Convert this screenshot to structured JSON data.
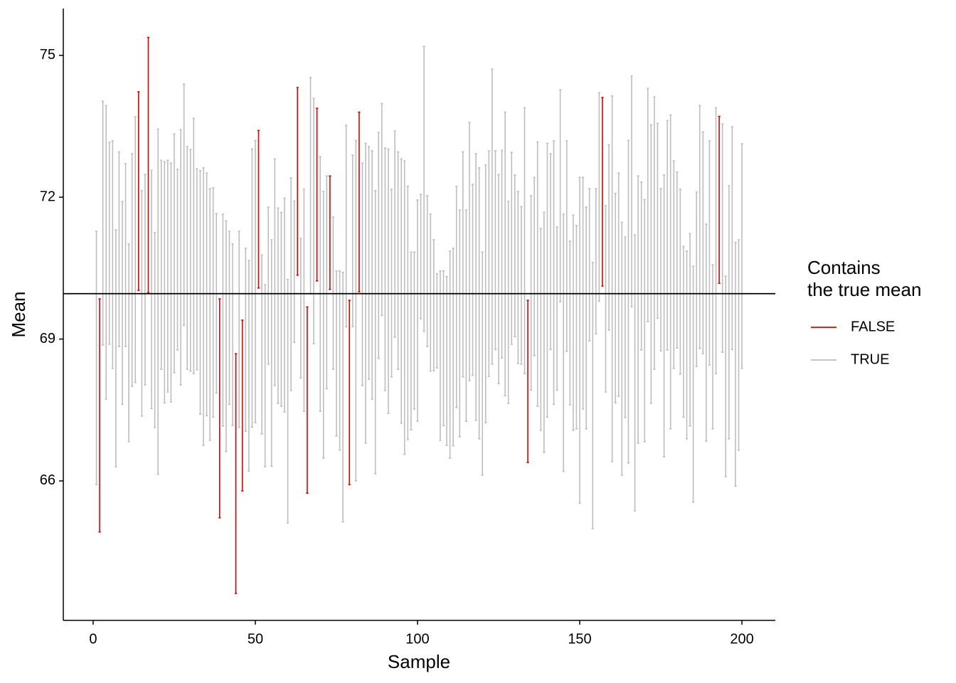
{
  "chart_data": {
    "type": "errorbar",
    "x_label": "Sample",
    "y_label": "Mean",
    "legend_title": "Contains\nthe true mean",
    "xlim": [
      -9.2,
      210.3
    ],
    "ylim": [
      63.05,
      75.99
    ],
    "xticks": [
      0,
      50,
      100,
      150,
      200
    ],
    "yticks": [
      66,
      69,
      72,
      75
    ],
    "hline": 69.96,
    "hline_color": "#000000",
    "legend_position": "right",
    "series": [
      {
        "name": "FALSE",
        "color": "#e00000",
        "x": [
          2,
          14,
          17,
          39,
          44,
          46,
          51,
          63,
          66,
          69,
          73,
          79,
          82,
          134,
          157,
          193
        ],
        "lower": [
          64.92,
          70.03,
          69.98,
          65.22,
          63.62,
          65.79,
          70.08,
          70.35,
          65.74,
          70.23,
          70.05,
          65.92,
          70.0,
          66.39,
          70.12,
          70.18
        ],
        "upper": [
          69.85,
          74.23,
          75.38,
          69.85,
          68.69,
          69.4,
          73.41,
          74.32,
          69.68,
          73.88,
          72.45,
          69.82,
          73.8,
          69.82,
          74.11,
          73.71
        ]
      },
      {
        "name": "TRUE",
        "color": "#bebebe",
        "x": [
          1,
          3,
          4,
          5,
          6,
          7,
          8,
          9,
          10,
          11,
          12,
          13,
          15,
          16,
          18,
          19,
          20,
          21,
          22,
          23,
          24,
          25,
          26,
          27,
          28,
          29,
          30,
          31,
          32,
          33,
          34,
          35,
          36,
          37,
          38,
          40,
          41,
          42,
          43,
          45,
          47,
          48,
          49,
          50,
          52,
          53,
          54,
          55,
          56,
          57,
          58,
          59,
          60,
          61,
          62,
          64,
          65,
          67,
          68,
          70,
          71,
          72,
          74,
          75,
          76,
          77,
          78,
          80,
          81,
          83,
          84,
          85,
          86,
          87,
          88,
          89,
          90,
          91,
          92,
          93,
          94,
          95,
          96,
          97,
          98,
          99,
          100,
          101,
          102,
          103,
          104,
          105,
          106,
          107,
          108,
          109,
          110,
          111,
          112,
          113,
          114,
          115,
          116,
          117,
          118,
          119,
          120,
          121,
          122,
          123,
          124,
          125,
          126,
          127,
          128,
          129,
          130,
          131,
          132,
          133,
          135,
          136,
          137,
          138,
          139,
          140,
          141,
          142,
          143,
          144,
          145,
          146,
          147,
          148,
          149,
          150,
          151,
          152,
          153,
          154,
          155,
          156,
          158,
          159,
          160,
          161,
          162,
          163,
          164,
          165,
          166,
          167,
          168,
          169,
          170,
          171,
          172,
          173,
          174,
          175,
          176,
          177,
          178,
          179,
          180,
          181,
          182,
          183,
          184,
          185,
          186,
          187,
          188,
          189,
          190,
          191,
          192,
          194,
          195,
          196,
          197,
          198,
          199,
          200
        ],
        "lower": [
          65.92,
          68.87,
          67.73,
          68.89,
          68.38,
          66.3,
          68.84,
          67.62,
          68.84,
          66.83,
          68.0,
          68.08,
          67.37,
          68.03,
          67.53,
          67.13,
          66.14,
          68.36,
          67.65,
          67.88,
          67.67,
          68.29,
          68.77,
          68.03,
          69.29,
          68.36,
          68.32,
          68.27,
          68.35,
          67.41,
          66.75,
          67.38,
          66.86,
          67.35,
          67.86,
          67.16,
          66.62,
          67.62,
          67.17,
          67.13,
          67.05,
          66.21,
          67.14,
          67.23,
          66.99,
          66.3,
          68.47,
          66.31,
          68.02,
          67.64,
          67.58,
          67.46,
          65.11,
          67.91,
          68.93,
          68.18,
          67.47,
          69.95,
          68.9,
          67.47,
          66.48,
          67.95,
          68.36,
          66.95,
          66.65,
          65.13,
          69.26,
          69.26,
          66.0,
          68.02,
          66.8,
          68.15,
          67.73,
          66.15,
          68.59,
          69.5,
          67.91,
          67.43,
          68.2,
          69.04,
          68.36,
          67.22,
          66.56,
          66.87,
          67.08,
          67.52,
          67.26,
          69.43,
          69.16,
          68.84,
          68.32,
          68.33,
          68.39,
          66.86,
          67.17,
          66.75,
          66.48,
          66.74,
          67.55,
          66.93,
          68.2,
          67.26,
          68.12,
          68.23,
          67.28,
          66.89,
          66.12,
          67.23,
          68.21,
          68.47,
          68.78,
          68.06,
          68.6,
          67.8,
          67.64,
          68.89,
          69.05,
          68.48,
          68.47,
          68.27,
          67.92,
          68.65,
          67.58,
          67.07,
          66.6,
          67.35,
          68.78,
          67.62,
          67.92,
          69.79,
          66.2,
          68.74,
          67.61,
          67.07,
          67.1,
          65.53,
          67.52,
          67.1,
          68.96,
          64.99,
          69.11,
          69.8,
          67.88,
          69.19,
          66.41,
          67.65,
          67.79,
          66.12,
          67.34,
          66.38,
          69.68,
          65.37,
          66.8,
          68.77,
          66.83,
          69.37,
          67.64,
          68.36,
          69.44,
          68.75,
          66.51,
          68.77,
          67.1,
          68.38,
          68.81,
          68.26,
          67.35,
          66.89,
          67.16,
          65.55,
          68.42,
          68.8,
          68.69,
          66.84,
          68.45,
          67.1,
          68.27,
          68.72,
          66.09,
          66.89,
          68.78,
          65.89,
          66.65,
          68.38
        ],
        "upper": [
          71.28,
          74.03,
          73.94,
          73.16,
          73.19,
          71.31,
          72.96,
          71.91,
          72.71,
          71.01,
          72.92,
          73.7,
          72.14,
          72.48,
          72.57,
          71.25,
          73.44,
          72.78,
          72.75,
          72.78,
          72.72,
          73.34,
          72.59,
          73.43,
          74.39,
          73.07,
          73.01,
          73.67,
          72.6,
          72.56,
          72.62,
          72.51,
          72.18,
          72.2,
          71.65,
          71.64,
          71.5,
          71.28,
          71.01,
          71.28,
          70.92,
          70.66,
          73.02,
          73.2,
          70.78,
          70.15,
          71.79,
          71.1,
          72.81,
          71.77,
          71.68,
          71.98,
          70.26,
          72.41,
          71.92,
          71.13,
          72.17,
          74.53,
          74.09,
          72.86,
          72.12,
          72.45,
          71.58,
          70.44,
          70.44,
          70.41,
          73.52,
          72.89,
          73.2,
          72.72,
          73.14,
          73.07,
          72.98,
          72.14,
          73.37,
          73.98,
          73.04,
          73.02,
          72.17,
          73.4,
          72.96,
          72.81,
          72.77,
          72.23,
          70.84,
          70.84,
          71.94,
          72.06,
          75.19,
          72.03,
          71.64,
          71.1,
          70.38,
          70.44,
          70.44,
          70.32,
          70.86,
          70.92,
          72.23,
          71.73,
          72.96,
          71.73,
          73.58,
          72.27,
          72.92,
          72.62,
          70.84,
          72.68,
          72.98,
          74.71,
          72.98,
          72.48,
          72.99,
          73.8,
          71.91,
          72.95,
          72.47,
          72.12,
          71.8,
          73.89,
          72.03,
          72.42,
          73.17,
          71.34,
          71.68,
          73.14,
          72.92,
          73.19,
          71.37,
          74.27,
          71.64,
          73.19,
          71.07,
          71.62,
          71.4,
          72.42,
          72.42,
          71.79,
          72.18,
          70.62,
          72.18,
          74.21,
          71.82,
          73.11,
          74.14,
          72.08,
          72.51,
          71.47,
          71.16,
          73.2,
          74.56,
          71.2,
          72.45,
          72.32,
          71.95,
          74.3,
          73.53,
          74.12,
          73.56,
          72.18,
          72.47,
          73.62,
          73.74,
          72.77,
          72.53,
          72.17,
          70.96,
          70.86,
          71.23,
          70.54,
          72.11,
          73.94,
          73.38,
          71.43,
          73.19,
          70.57,
          73.89,
          73.55,
          70.33,
          72.24,
          73.49,
          71.04,
          71.1,
          73.13
        ]
      }
    ]
  }
}
